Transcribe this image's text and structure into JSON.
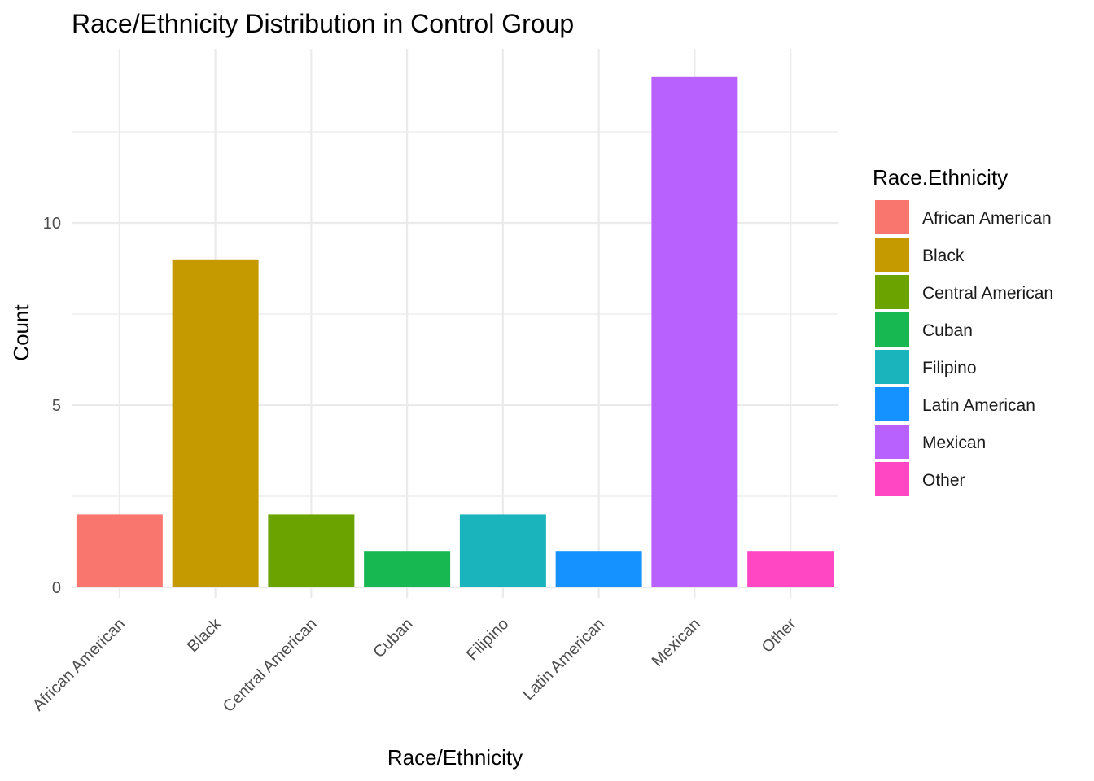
{
  "chart_data": {
    "type": "bar",
    "title": "Race/Ethnicity Distribution in Control Group",
    "xlabel": "Race/Ethnicity",
    "ylabel": "Count",
    "categories": [
      "African American",
      "Black",
      "Central American",
      "Cuban",
      "Filipino",
      "Latin American",
      "Mexican",
      "Other"
    ],
    "values": [
      2,
      9,
      2,
      1,
      2,
      1,
      14,
      1
    ],
    "colors": [
      "#F8766D",
      "#C49A00",
      "#6BA300",
      "#17B752",
      "#19B4BC",
      "#1592FF",
      "#B861FF",
      "#FF47C4"
    ],
    "ylim": [
      0,
      14.7
    ],
    "yticks": [
      0,
      5,
      10
    ],
    "grid": true,
    "legend": {
      "title": "Race.Ethnicity",
      "position": "right"
    }
  }
}
